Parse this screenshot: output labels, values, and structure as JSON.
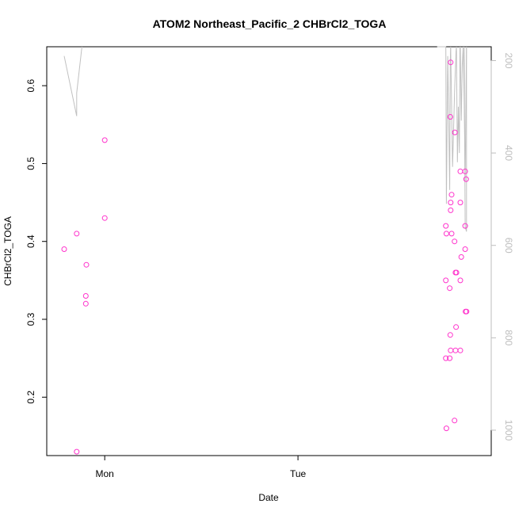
{
  "chart_data": {
    "type": "scatter",
    "title": "ATOM2 Northeast_Pacific_2 CHBrCl2_TOGA",
    "xlabel": "Date",
    "ylabel": "CHBrCl2_TOGA",
    "x_ticks": [
      "Mon",
      "Tue"
    ],
    "y_ticks": [
      "0.2",
      "0.3",
      "0.4",
      "0.5",
      "0.6"
    ],
    "y_right_ticks": [
      "200",
      "400",
      "600",
      "800",
      "1000"
    ],
    "xlim_days": [
      -0.3,
      2.0
    ],
    "ylim": [
      0.125,
      0.65
    ],
    "y_right_lim": [
      1055,
      170
    ],
    "point_color": "#ff33cc",
    "trace_color": "#c0c0c0",
    "axis_color": "#000000",
    "right_axis_color": "#bdbdbd",
    "points_day_offset_from_Mon": [
      {
        "x": -0.21,
        "y": 0.39
      },
      {
        "x": -0.145,
        "y": 0.41
      },
      {
        "x": -0.145,
        "y": 0.13
      },
      {
        "x": -0.095,
        "y": 0.37
      },
      {
        "x": -0.098,
        "y": 0.33
      },
      {
        "x": -0.098,
        "y": 0.32
      },
      {
        "x": 0.0,
        "y": 0.53
      },
      {
        "x": 0.0,
        "y": 0.43
      },
      {
        "x": 1.765,
        "y": 0.42
      },
      {
        "x": 1.768,
        "y": 0.41
      },
      {
        "x": 1.765,
        "y": 0.35
      },
      {
        "x": 1.765,
        "y": 0.25
      },
      {
        "x": 1.768,
        "y": 0.16
      },
      {
        "x": 1.785,
        "y": 0.34
      },
      {
        "x": 1.788,
        "y": 0.28
      },
      {
        "x": 1.785,
        "y": 0.25
      },
      {
        "x": 1.79,
        "y": 0.26
      },
      {
        "x": 1.79,
        "y": 0.63
      },
      {
        "x": 1.788,
        "y": 0.56
      },
      {
        "x": 1.795,
        "y": 0.46
      },
      {
        "x": 1.79,
        "y": 0.45
      },
      {
        "x": 1.79,
        "y": 0.44
      },
      {
        "x": 1.795,
        "y": 0.41
      },
      {
        "x": 1.81,
        "y": 0.4
      },
      {
        "x": 1.812,
        "y": 0.54
      },
      {
        "x": 1.815,
        "y": 0.36
      },
      {
        "x": 1.82,
        "y": 0.36
      },
      {
        "x": 1.818,
        "y": 0.29
      },
      {
        "x": 1.815,
        "y": 0.26
      },
      {
        "x": 1.81,
        "y": 0.17
      },
      {
        "x": 1.84,
        "y": 0.49
      },
      {
        "x": 1.84,
        "y": 0.45
      },
      {
        "x": 1.845,
        "y": 0.38
      },
      {
        "x": 1.84,
        "y": 0.35
      },
      {
        "x": 1.84,
        "y": 0.26
      },
      {
        "x": 1.865,
        "y": 0.49
      },
      {
        "x": 1.87,
        "y": 0.48
      },
      {
        "x": 1.865,
        "y": 0.42
      },
      {
        "x": 1.865,
        "y": 0.39
      },
      {
        "x": 1.867,
        "y": 0.31
      },
      {
        "x": 1.872,
        "y": 0.31
      }
    ],
    "trace_segments_pressure": [
      [
        [
          -0.21,
          190
        ],
        [
          -0.145,
          320
        ],
        [
          -0.145,
          270
        ],
        [
          -0.118,
          170
        ]
      ],
      [
        [
          1.72,
          170
        ],
        [
          1.765,
          170
        ],
        [
          1.768,
          510
        ],
        [
          1.775,
          190
        ],
        [
          1.78,
          320
        ],
        [
          1.785,
          480
        ],
        [
          1.788,
          200
        ],
        [
          1.79,
          170
        ]
      ],
      [
        [
          1.79,
          170
        ],
        [
          1.8,
          430
        ],
        [
          1.81,
          270
        ],
        [
          1.818,
          180
        ],
        [
          1.82,
          170
        ]
      ],
      [
        [
          1.82,
          170
        ],
        [
          1.825,
          420
        ],
        [
          1.83,
          300
        ],
        [
          1.835,
          400
        ],
        [
          1.838,
          170
        ]
      ],
      [
        [
          1.84,
          170
        ],
        [
          1.845,
          330
        ],
        [
          1.85,
          210
        ],
        [
          1.855,
          170
        ]
      ],
      [
        [
          1.855,
          170
        ],
        [
          1.86,
          290
        ],
        [
          1.865,
          460
        ],
        [
          1.87,
          250
        ],
        [
          1.872,
          170
        ]
      ],
      [
        [
          1.86,
          170
        ],
        [
          1.865,
          560
        ],
        [
          1.872,
          570
        ],
        [
          1.872,
          170
        ]
      ]
    ]
  }
}
